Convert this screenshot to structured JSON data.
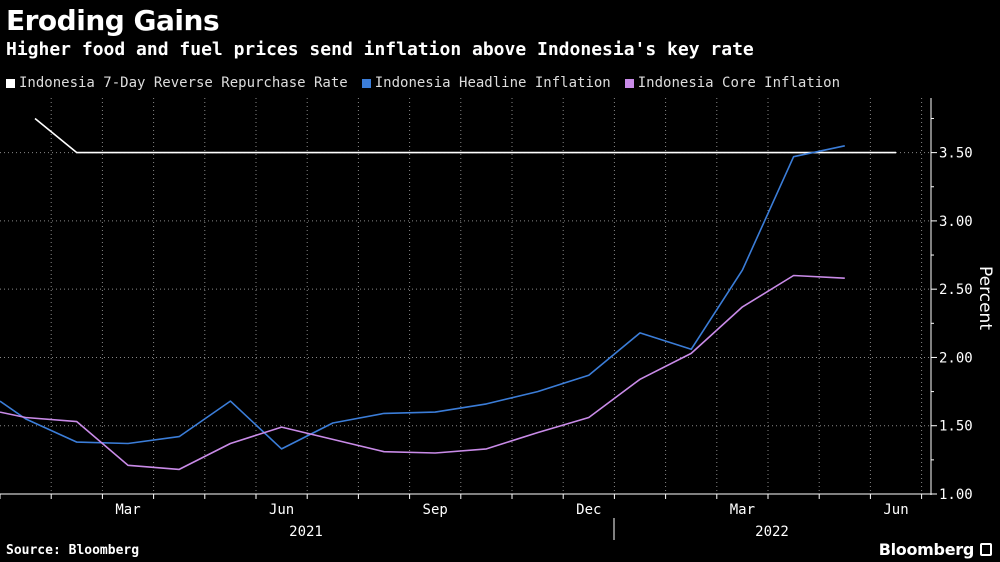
{
  "header": {
    "title": "Eroding Gains",
    "subtitle": "Higher food and fuel prices send inflation above Indonesia's key rate"
  },
  "footer": {
    "source": "Source: Bloomberg",
    "brand": "Bloomberg"
  },
  "colors": {
    "background": "#000000",
    "rate": "#ffffff",
    "headline": "#3b7dd8",
    "core": "#c98be8",
    "grid": "#888888"
  },
  "chart_data": {
    "type": "line",
    "title": "Eroding Gains",
    "subtitle": "Higher food and fuel prices send inflation above Indonesia's key rate",
    "ylabel": "Percent",
    "xlabel": "",
    "ylim": [
      1.0,
      3.9
    ],
    "y_ticks": [
      "1.00",
      "1.50",
      "2.00",
      "2.50",
      "3.00",
      "3.50"
    ],
    "x_tick_labels": [
      "Mar",
      "Jun",
      "Sep",
      "Dec",
      "Mar",
      "Jun"
    ],
    "x_tick_dates": [
      "2021-03",
      "2021-06",
      "2021-09",
      "2021-12",
      "2022-03",
      "2022-06"
    ],
    "year_labels": [
      "2021",
      "2022"
    ],
    "grid": true,
    "legend_position": "top-left",
    "series": [
      {
        "name": "Indonesia 7-Day Reverse Repurchase Rate",
        "color": "#ffffff",
        "x": [
          "2021-01",
          "2021-02",
          "2021-03",
          "2021-04",
          "2021-05",
          "2021-06",
          "2021-07",
          "2021-08",
          "2021-09",
          "2021-10",
          "2021-11",
          "2021-12",
          "2022-01",
          "2022-02",
          "2022-03",
          "2022-04",
          "2022-05",
          "2022-06"
        ],
        "values": [
          3.75,
          3.5,
          3.5,
          3.5,
          3.5,
          3.5,
          3.5,
          3.5,
          3.5,
          3.5,
          3.5,
          3.5,
          3.5,
          3.5,
          3.5,
          3.5,
          3.5,
          3.5
        ]
      },
      {
        "name": "Indonesia Headline Inflation",
        "color": "#3b7dd8",
        "x": [
          "2020-12",
          "2021-01",
          "2021-02",
          "2021-03",
          "2021-04",
          "2021-05",
          "2021-06",
          "2021-07",
          "2021-08",
          "2021-09",
          "2021-10",
          "2021-11",
          "2021-12",
          "2022-01",
          "2022-02",
          "2022-03",
          "2022-04",
          "2022-05"
        ],
        "values": [
          1.68,
          1.55,
          1.38,
          1.37,
          1.42,
          1.68,
          1.33,
          1.52,
          1.59,
          1.6,
          1.66,
          1.75,
          1.87,
          2.18,
          2.06,
          2.64,
          3.47,
          3.55
        ]
      },
      {
        "name": "Indonesia Core Inflation",
        "color": "#c98be8",
        "x": [
          "2020-12",
          "2021-01",
          "2021-02",
          "2021-03",
          "2021-04",
          "2021-05",
          "2021-06",
          "2021-07",
          "2021-08",
          "2021-09",
          "2021-10",
          "2021-11",
          "2021-12",
          "2022-01",
          "2022-02",
          "2022-03",
          "2022-04",
          "2022-05"
        ],
        "values": [
          1.6,
          1.56,
          1.53,
          1.21,
          1.18,
          1.37,
          1.49,
          1.4,
          1.31,
          1.3,
          1.33,
          1.45,
          1.56,
          1.84,
          2.03,
          2.37,
          2.6,
          2.58
        ]
      }
    ]
  }
}
